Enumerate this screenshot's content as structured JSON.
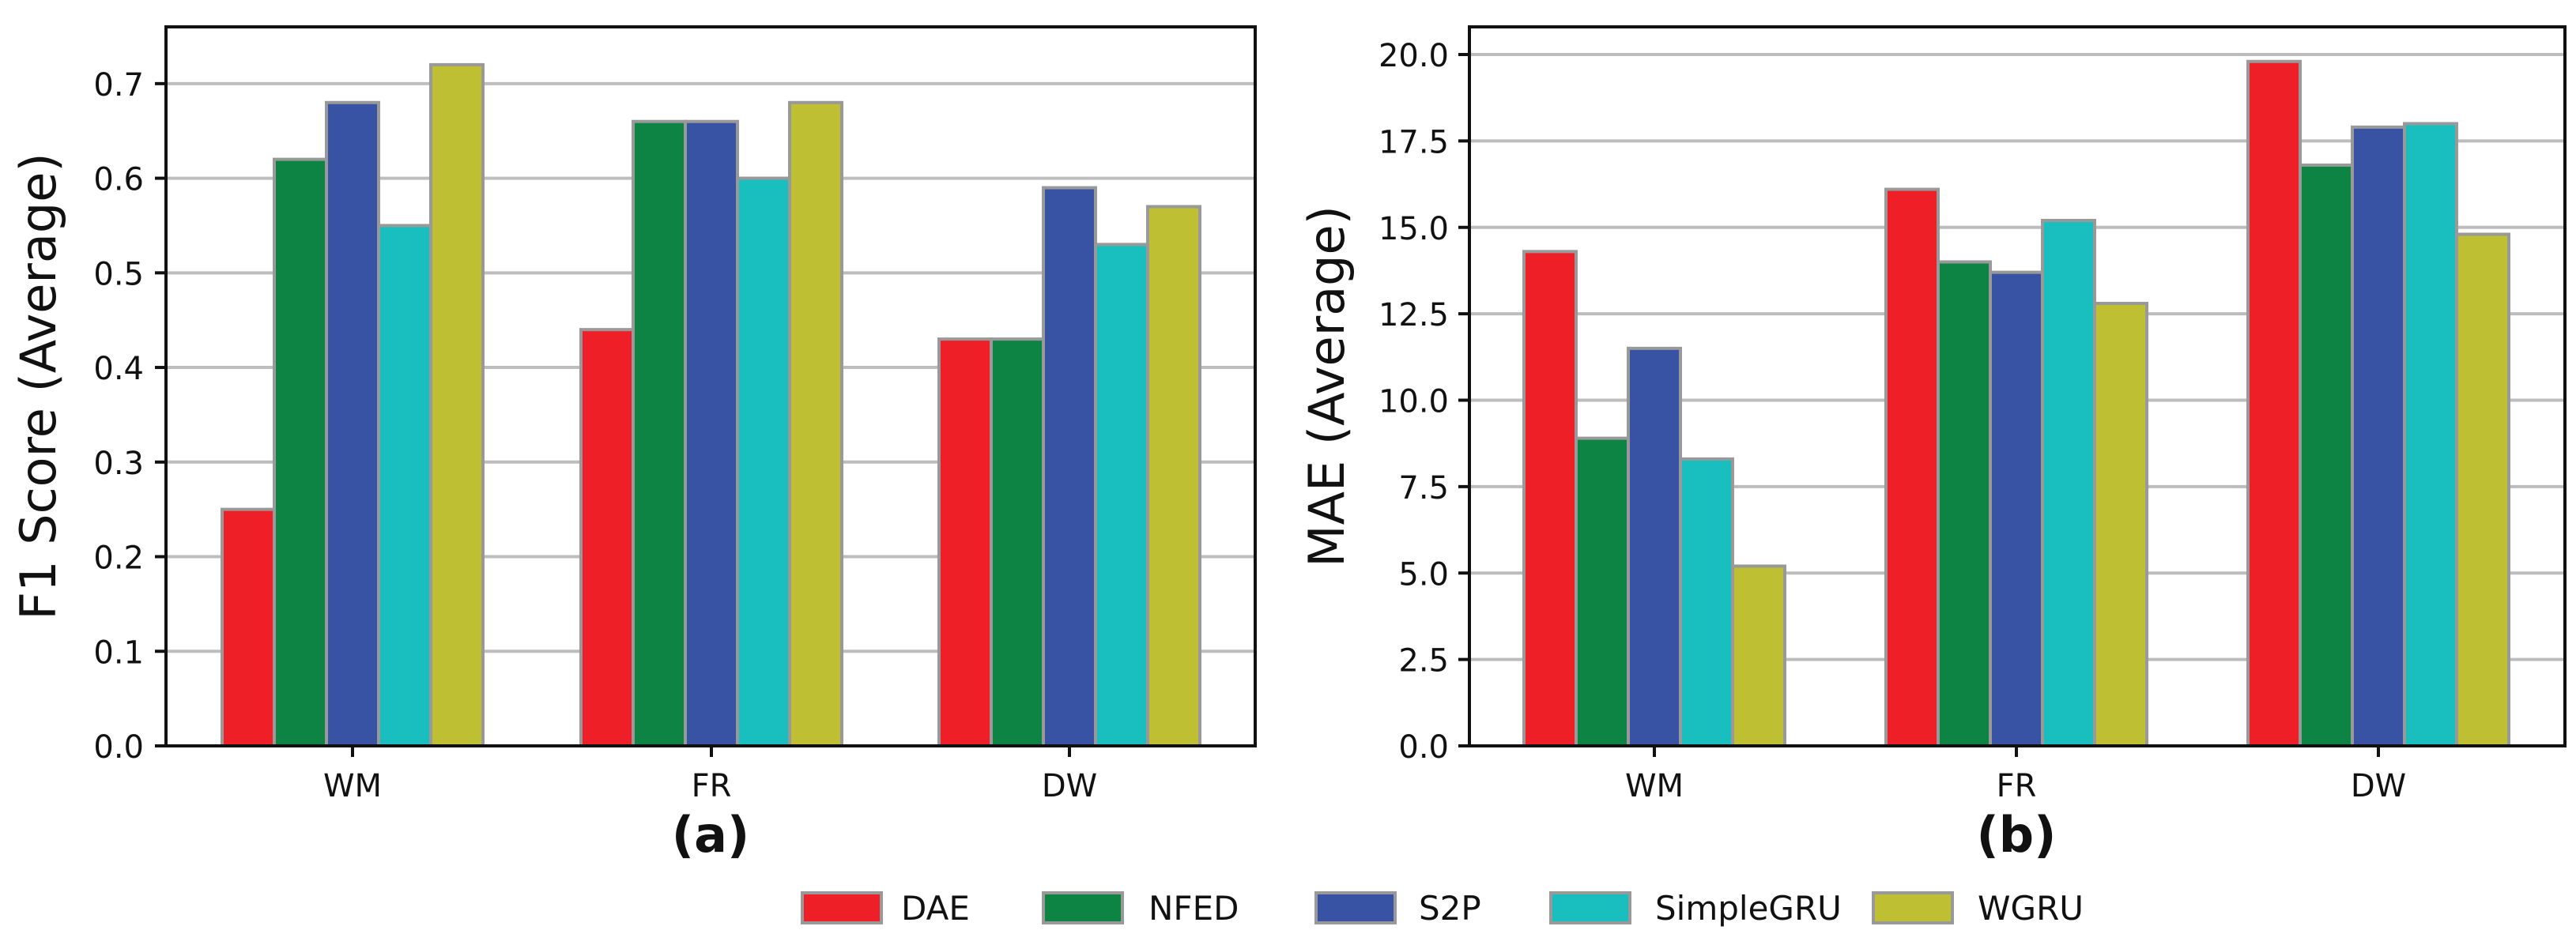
{
  "series_colors": {
    "DAE": "#ee1f26",
    "NFED": "#0d8443",
    "S2P": "#3953a4",
    "SimpleGRU": "#19bfbf",
    "WGRU": "#bfbf33"
  },
  "bar_edge_color": "#999999",
  "grid_color": "#bdbdbd",
  "legend": [
    "DAE",
    "NFED",
    "S2P",
    "SimpleGRU",
    "WGRU"
  ],
  "chart_data": [
    {
      "type": "bar",
      "sublabel": "(a)",
      "title": "",
      "xlabel": "",
      "ylabel": "F1 Score (Average)",
      "categories": [
        "WM",
        "FR",
        "DW"
      ],
      "ylim": [
        0,
        0.76
      ],
      "yticks": [
        0.0,
        0.1,
        0.2,
        0.3,
        0.4,
        0.5,
        0.6,
        0.7
      ],
      "ytick_labels": [
        "0.0",
        "0.1",
        "0.2",
        "0.3",
        "0.4",
        "0.5",
        "0.6",
        "0.7"
      ],
      "grid": true,
      "series": [
        {
          "name": "DAE",
          "values": [
            0.25,
            0.44,
            0.43
          ]
        },
        {
          "name": "NFED",
          "values": [
            0.62,
            0.66,
            0.43
          ]
        },
        {
          "name": "S2P",
          "values": [
            0.68,
            0.66,
            0.59
          ]
        },
        {
          "name": "SimpleGRU",
          "values": [
            0.55,
            0.6,
            0.53
          ]
        },
        {
          "name": "WGRU",
          "values": [
            0.72,
            0.68,
            0.57
          ]
        }
      ]
    },
    {
      "type": "bar",
      "sublabel": "(b)",
      "title": "",
      "xlabel": "",
      "ylabel": "MAE (Average)",
      "categories": [
        "WM",
        "FR",
        "DW"
      ],
      "ylim": [
        0,
        20.8
      ],
      "yticks": [
        0.0,
        2.5,
        5.0,
        7.5,
        10.0,
        12.5,
        15.0,
        17.5,
        20.0
      ],
      "ytick_labels": [
        "0.0",
        "2.5",
        "5.0",
        "7.5",
        "10.0",
        "12.5",
        "15.0",
        "17.5",
        "20.0"
      ],
      "grid": true,
      "series": [
        {
          "name": "DAE",
          "values": [
            14.3,
            16.1,
            19.8
          ]
        },
        {
          "name": "NFED",
          "values": [
            8.9,
            14.0,
            16.8
          ]
        },
        {
          "name": "S2P",
          "values": [
            11.5,
            13.7,
            17.9
          ]
        },
        {
          "name": "SimpleGRU",
          "values": [
            8.3,
            15.2,
            18.0
          ]
        },
        {
          "name": "WGRU",
          "values": [
            5.2,
            12.8,
            14.8
          ]
        }
      ]
    }
  ]
}
